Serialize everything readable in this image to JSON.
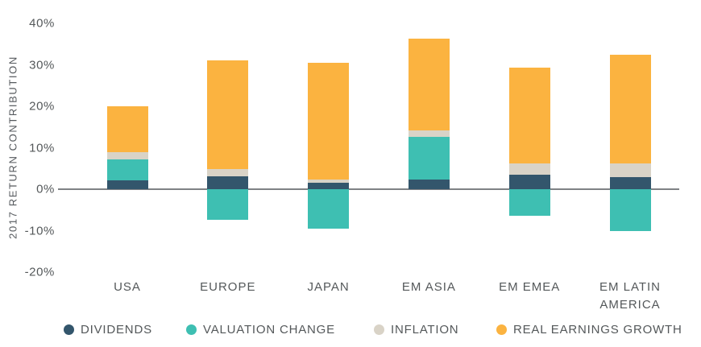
{
  "chart_data": {
    "type": "bar",
    "subtype": "stacked-bar-with-negatives",
    "title": "",
    "ylabel": "2017 RETURN CONTRIBUTION",
    "categories": [
      "USA",
      "EUROPE",
      "JAPAN",
      "EM ASIA",
      "EM EMEA",
      "EM LATIN AMERICA"
    ],
    "series": [
      {
        "name": "DIVIDENDS",
        "color": "#33566C",
        "values": [
          2.1,
          3.2,
          1.6,
          2.4,
          3.4,
          2.9
        ]
      },
      {
        "name": "VALUATION CHANGE",
        "color": "#3EBFB2",
        "values": [
          5.1,
          -7.4,
          -9.5,
          10.2,
          -6.4,
          -10.0
        ]
      },
      {
        "name": "INFLATION",
        "color": "#D9D3C7",
        "values": [
          1.8,
          1.6,
          0.7,
          1.5,
          2.8,
          3.4
        ]
      },
      {
        "name": "REAL EARNINGS GROWTH",
        "color": "#FBB340",
        "values": [
          11.0,
          26.3,
          28.2,
          22.3,
          23.2,
          26.1
        ]
      }
    ],
    "stack_totals_top": [
      20.0,
      31.1,
      30.5,
      36.4,
      29.4,
      32.4
    ],
    "yticks": [
      40,
      30,
      20,
      10,
      0,
      -10,
      -20
    ],
    "ytick_suffix": "%",
    "ylim": [
      -20,
      40
    ],
    "grid": "none",
    "zero_line": true,
    "legend_position": "bottom",
    "colors": {
      "background": "#FFFFFF",
      "axis_text": "#54585A",
      "zero_line": "#7F8285"
    }
  }
}
